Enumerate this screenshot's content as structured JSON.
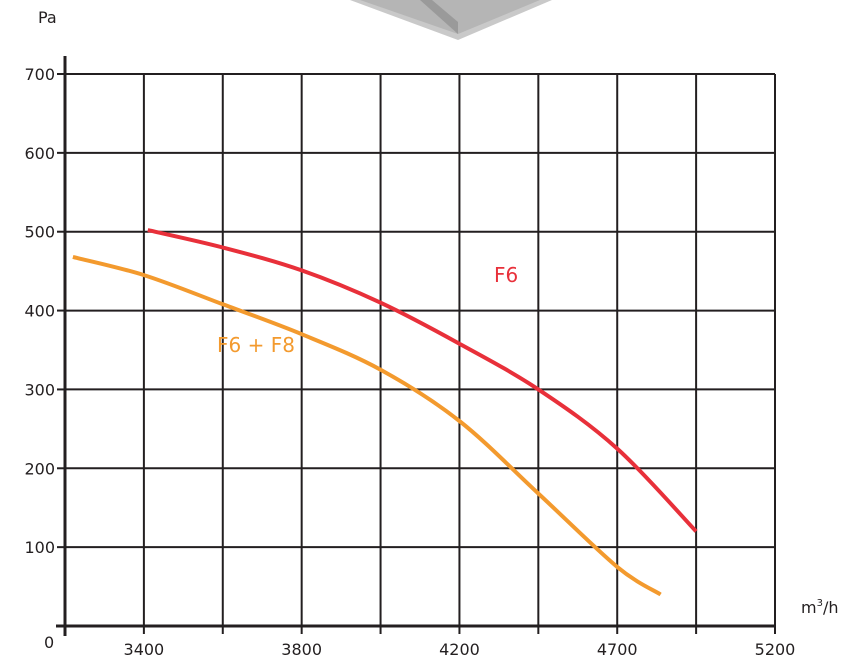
{
  "chart_data": {
    "type": "line",
    "y_unit": "Pa",
    "x_unit_base": "m",
    "x_unit_sup": "3",
    "x_unit_rest": "/h",
    "origin_label": "0",
    "x_tick_labels": [
      "3400",
      "3800",
      "4200",
      "4700",
      "5200"
    ],
    "y_ticks": [
      100,
      200,
      300,
      400,
      500,
      600,
      700
    ],
    "ylim": [
      0,
      700
    ],
    "grid": true,
    "series": [
      {
        "name": "F6",
        "color": "#e8303a",
        "points": [
          [
            1.05,
            502
          ],
          [
            2.0,
            480
          ],
          [
            3.0,
            451
          ],
          [
            4.0,
            410
          ],
          [
            5.0,
            358
          ],
          [
            6.0,
            300
          ],
          [
            7.0,
            225
          ],
          [
            8.0,
            120
          ]
        ]
      },
      {
        "name": "F6 + F8",
        "color": "#f39a2e",
        "points": [
          [
            0.1,
            468
          ],
          [
            1.0,
            445
          ],
          [
            2.0,
            408
          ],
          [
            3.0,
            370
          ],
          [
            4.0,
            325
          ],
          [
            5.0,
            260
          ],
          [
            6.0,
            168
          ],
          [
            7.0,
            75
          ],
          [
            7.55,
            40
          ]
        ]
      }
    ]
  }
}
